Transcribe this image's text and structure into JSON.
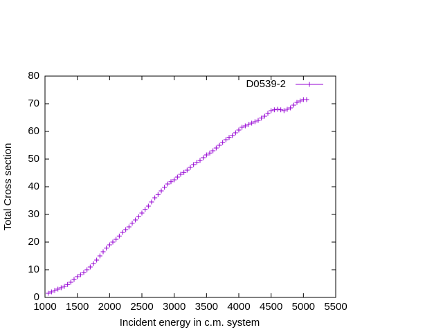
{
  "chart_data": {
    "type": "scatter",
    "xlabel": "Incident energy in c.m. system",
    "ylabel": "Total Cross section",
    "xlim": [
      1000,
      5500
    ],
    "ylim": [
      0,
      80
    ],
    "xticks": [
      1000,
      1500,
      2000,
      2500,
      3000,
      3500,
      4000,
      4500,
      5000,
      5500
    ],
    "yticks": [
      0,
      10,
      20,
      30,
      40,
      50,
      60,
      70,
      80
    ],
    "legend": "upper right",
    "series": [
      {
        "name": "D0539-2",
        "color": "#9400d3",
        "x": [
          1050,
          1100,
          1150,
          1200,
          1250,
          1300,
          1350,
          1400,
          1450,
          1500,
          1550,
          1600,
          1650,
          1700,
          1750,
          1800,
          1850,
          1900,
          1950,
          2000,
          2050,
          2100,
          2150,
          2200,
          2250,
          2300,
          2350,
          2400,
          2450,
          2500,
          2550,
          2600,
          2650,
          2700,
          2750,
          2800,
          2850,
          2900,
          2950,
          3000,
          3050,
          3100,
          3150,
          3200,
          3250,
          3300,
          3350,
          3400,
          3450,
          3500,
          3550,
          3600,
          3650,
          3700,
          3750,
          3800,
          3850,
          3900,
          3950,
          4000,
          4050,
          4100,
          4150,
          4200,
          4250,
          4300,
          4350,
          4400,
          4450,
          4500,
          4550,
          4600,
          4650,
          4700,
          4750,
          4800,
          4850,
          4900,
          4950,
          5000,
          5050
        ],
        "values": [
          1.5,
          2,
          2.5,
          3,
          3.5,
          4,
          4.7,
          5.5,
          6.5,
          7.5,
          8.2,
          9,
          10,
          11,
          12.2,
          13.5,
          15,
          16.5,
          17.8,
          19,
          20,
          21,
          22.2,
          23.5,
          24.5,
          25.5,
          26.8,
          28,
          29.2,
          30.5,
          31.8,
          33,
          34.5,
          36,
          37.2,
          38.5,
          39.8,
          41,
          41.8,
          42.5,
          43.5,
          44.5,
          45.2,
          46,
          47,
          48,
          48.8,
          49.5,
          50.5,
          51.5,
          52.2,
          53,
          54,
          55,
          56,
          57,
          57.8,
          58.5,
          59.5,
          60.5,
          61.5,
          62,
          62.5,
          63,
          63.5,
          64,
          64.8,
          65.5,
          66.5,
          67.5,
          67.8,
          68,
          67.8,
          67.5,
          68,
          68.5,
          69.5,
          70.5,
          71,
          71.5,
          71.5
        ]
      }
    ]
  }
}
